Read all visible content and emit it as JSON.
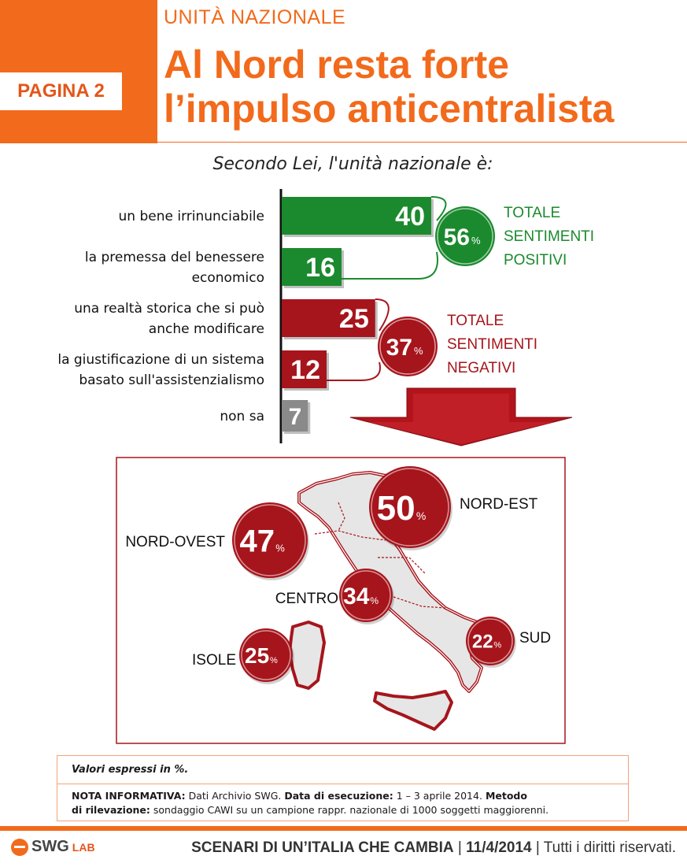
{
  "header": {
    "page_tag": "PAGINA 2",
    "kicker": "UNITÀ NAZIONALE",
    "headline_line1": "Al Nord resta forte",
    "headline_line2": "l’impulso anticentralista"
  },
  "question": "Secondo Lei, l'unità nazionale è:",
  "chart_data": {
    "type": "bar",
    "orientation": "horizontal",
    "categories": [
      [
        "un bene irrinunciabile"
      ],
      [
        "la premessa del benessere",
        "economico"
      ],
      [
        "una realtà storica che si può",
        "anche modificare"
      ],
      [
        "la giustificazione di un sistema",
        "basato sull'assistenzialismo"
      ],
      [
        "non sa"
      ]
    ],
    "values": [
      40,
      16,
      25,
      12,
      7
    ],
    "bar_colors": [
      "#1b8a2e",
      "#1b8a2e",
      "#a6151c",
      "#a6151c",
      "#8a8a8a"
    ],
    "unit": "%",
    "groups": [
      {
        "value": "56",
        "unit": "%",
        "label_lines": [
          "TOTALE",
          "SENTIMENTI",
          "POSITIVI"
        ],
        "color": "#1b8a2e",
        "rows": [
          0,
          1
        ]
      },
      {
        "value": "37",
        "unit": "%",
        "label_lines": [
          "TOTALE",
          "SENTIMENTI",
          "NEGATIVI"
        ],
        "color": "#a6151c",
        "rows": [
          2,
          3
        ]
      }
    ],
    "regions": [
      {
        "name": "NORD-EST",
        "value": "50",
        "unit": "%"
      },
      {
        "name": "NORD-OVEST",
        "value": "47",
        "unit": "%"
      },
      {
        "name": "CENTRO",
        "value": "34",
        "unit": "%"
      },
      {
        "name": "SUD",
        "value": "22",
        "unit": "%"
      },
      {
        "name": "ISOLE",
        "value": "25",
        "unit": "%"
      }
    ]
  },
  "note": {
    "values_line": "Valori espressi in %.",
    "nota_label": "NOTA INFORMATIVA:",
    "nota_text": "Dati Archivio SWG.",
    "data_label": "Data di esecuzione:",
    "data_text": "1 – 3 aprile 2014.",
    "metodo_label1": "Metodo",
    "metodo_label2": "di rilevazione:",
    "metodo_text": "sondaggio CAWI su un campione rappr. nazionale di 1000 soggetti maggiorenni."
  },
  "footer": {
    "logo_text": "SWG",
    "logo_sub": "LAB",
    "title": "SCENARI DI UN’ITALIA CHE CAMBIA",
    "date": "11/4/2014",
    "rights": "Tutti i diritti riservati."
  }
}
